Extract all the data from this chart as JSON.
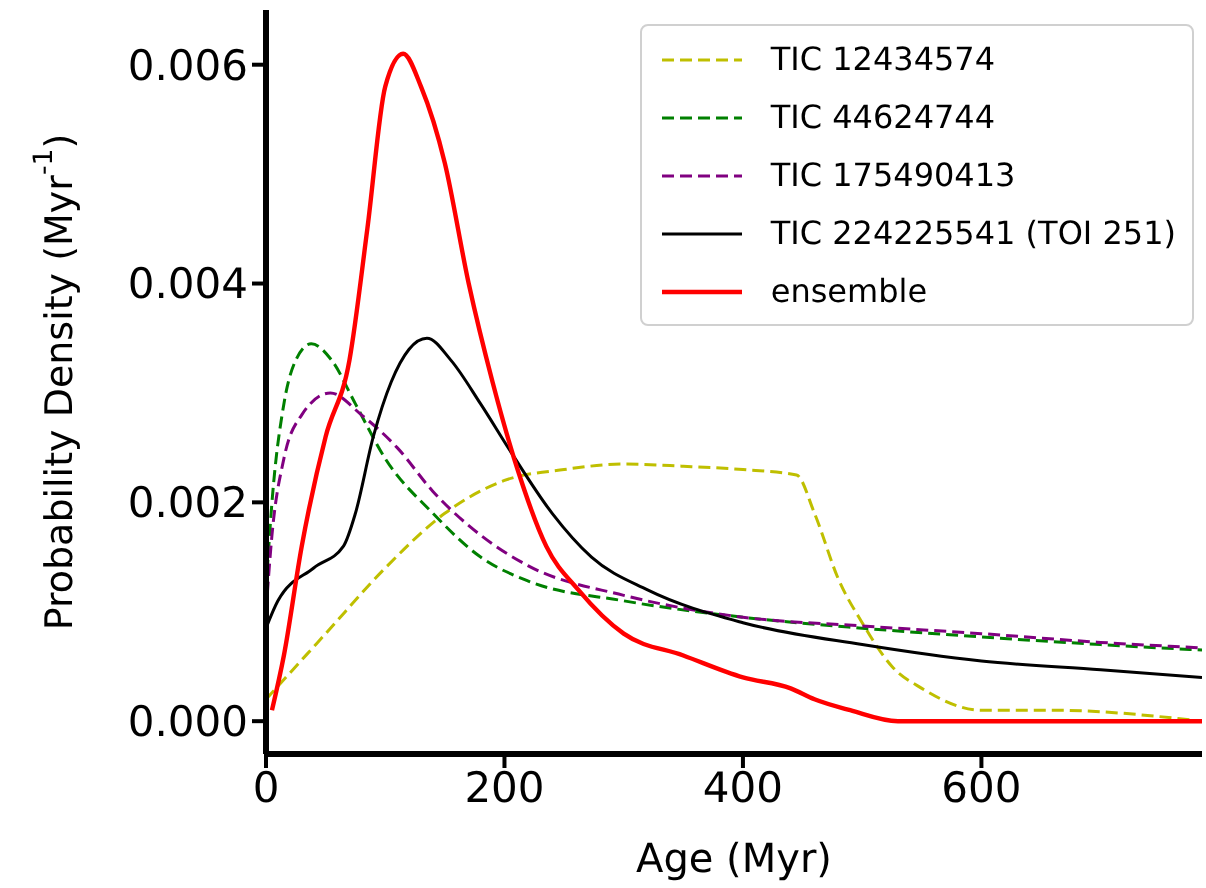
{
  "chart_data": {
    "type": "line",
    "xlabel": "Age (Myr)",
    "ylabel": "Probability Density (Myr$^{-1}$)",
    "xlim": [
      0,
      785
    ],
    "xticks": [
      0,
      200,
      400,
      600
    ],
    "ylim": [
      -0.0003,
      0.0065
    ],
    "yticks": [
      {
        "value": 0,
        "label": "0.000"
      },
      {
        "value": 0.002,
        "label": "0.002"
      },
      {
        "value": 0.004,
        "label": "0.004"
      },
      {
        "value": 0.006,
        "label": "0.006"
      }
    ],
    "legend": "top right",
    "series": [
      {
        "name": "TIC 12434574",
        "color": "#bfbf00",
        "line_style": "dashed",
        "x": [
          0,
          50,
          100,
          150,
          200,
          250,
          300,
          350,
          400,
          445,
          460,
          480,
          500,
          525,
          550,
          600,
          660,
          785
        ],
        "values": [
          0.0002,
          0.0008,
          0.0014,
          0.0019,
          0.0022,
          0.0023,
          0.00235,
          0.00233,
          0.0023,
          0.00225,
          0.0019,
          0.0013,
          0.0009,
          0.0005,
          0.0003,
          0.0001,
          0.0001,
          0
        ]
      },
      {
        "name": "TIC 44624744",
        "color": "#008000",
        "line_style": "dashed",
        "x": [
          0,
          5,
          15,
          25,
          38,
          55,
          75,
          100,
          140,
          180,
          220,
          300,
          400,
          500,
          600,
          700,
          785
        ],
        "values": [
          0.0012,
          0.002,
          0.0029,
          0.0033,
          0.00345,
          0.0033,
          0.0029,
          0.0024,
          0.0019,
          0.0015,
          0.00128,
          0.0011,
          0.00095,
          0.00085,
          0.00077,
          0.0007,
          0.00065
        ]
      },
      {
        "name": "TIC 175490413",
        "color": "#800080",
        "line_style": "dashed",
        "x": [
          0,
          5,
          15,
          30,
          54,
          80,
          110,
          140,
          180,
          220,
          300,
          400,
          500,
          600,
          700,
          785
        ],
        "values": [
          0.001,
          0.0017,
          0.0024,
          0.0028,
          0.003,
          0.0028,
          0.0025,
          0.0021,
          0.0017,
          0.00142,
          0.00115,
          0.00095,
          0.00087,
          0.0008,
          0.00072,
          0.00067
        ]
      },
      {
        "name": "TIC 224225541 (TOI 251)",
        "color": "#000000",
        "line_style": "solid",
        "x": [
          0,
          10,
          40,
          65,
          75,
          90,
          105,
          120,
          135,
          155,
          180,
          206,
          240,
          273,
          320,
          400,
          500,
          600,
          700,
          785
        ],
        "values": [
          0.00085,
          0.0011,
          0.0014,
          0.0016,
          0.0019,
          0.0026,
          0.0031,
          0.0034,
          0.0035,
          0.0033,
          0.0029,
          0.00245,
          0.0019,
          0.0015,
          0.0012,
          0.0009,
          0.0007,
          0.00055,
          0.00047,
          0.0004
        ]
      },
      {
        "name": "ensemble",
        "color": "#ff0000",
        "line_style": "solid",
        "x": [
          5,
          15,
          30,
          50,
          70,
          85,
          100,
          115,
          130,
          150,
          170,
          190,
          211,
          235,
          262,
          300,
          350,
          400,
          440,
          460,
          490,
          530,
          600,
          785
        ],
        "values": [
          0.0001,
          0.0006,
          0.0016,
          0.0026,
          0.0033,
          0.0045,
          0.0058,
          0.0061,
          0.0058,
          0.0051,
          0.004,
          0.0031,
          0.0023,
          0.0016,
          0.0012,
          0.0008,
          0.0006,
          0.0004,
          0.0003,
          0.0002,
          0.0001,
          0,
          0,
          0
        ]
      }
    ]
  }
}
